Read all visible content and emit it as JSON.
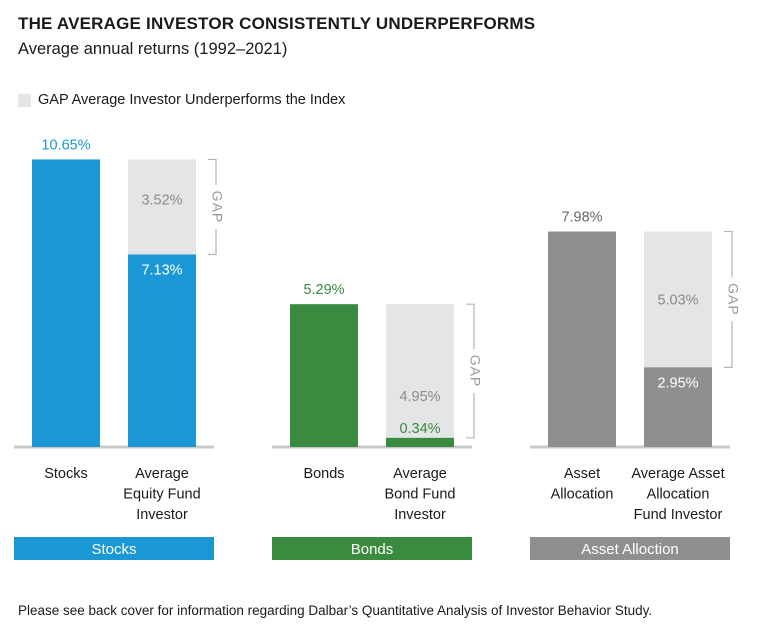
{
  "title": "THE AVERAGE INVESTOR CONSISTENTLY UNDERPERFORMS",
  "subtitle": "Average annual returns (1992–2021)",
  "legend": {
    "label": "GAP Average Investor Underperforms the Index",
    "color": "#e4e5e6"
  },
  "gap_label": "GAP",
  "footnote": "Please see back cover for information regarding Dalbar’s Quantitative Analysis of Investor Behavior Study.",
  "chart_data": {
    "type": "bar",
    "stacked": true,
    "unit": "%",
    "groups": [
      {
        "name": "Stocks",
        "color": "#1a98d5",
        "index_bar": {
          "label": [
            "Stocks"
          ],
          "value": 10.65,
          "value_text": "10.65%"
        },
        "investor_bar": {
          "label": [
            "Average",
            "Equity Fund",
            "Investor"
          ],
          "value": 7.13,
          "value_text": "7.13%",
          "gap": 3.52,
          "gap_text": "3.52%"
        }
      },
      {
        "name": "Bonds",
        "color": "#3a8a3f",
        "index_bar": {
          "label": [
            "Bonds"
          ],
          "value": 5.29,
          "value_text": "5.29%"
        },
        "investor_bar": {
          "label": [
            "Average",
            "Bond Fund",
            "Investor"
          ],
          "value": 0.34,
          "value_text": "0.34%",
          "gap": 4.95,
          "gap_text": "4.95%"
        }
      },
      {
        "name": "Asset Alloction",
        "color": "#8e8f91",
        "index_bar": {
          "label": [
            "Asset",
            "Allocation"
          ],
          "value": 7.98,
          "value_text": "7.98%"
        },
        "investor_bar": {
          "label": [
            "Average Asset",
            "Allocation",
            "Fund Investor"
          ],
          "value": 2.95,
          "value_text": "2.95%",
          "gap": 5.03,
          "gap_text": "5.03%"
        }
      }
    ],
    "gap_color": "#e4e5e6",
    "grid": false
  }
}
